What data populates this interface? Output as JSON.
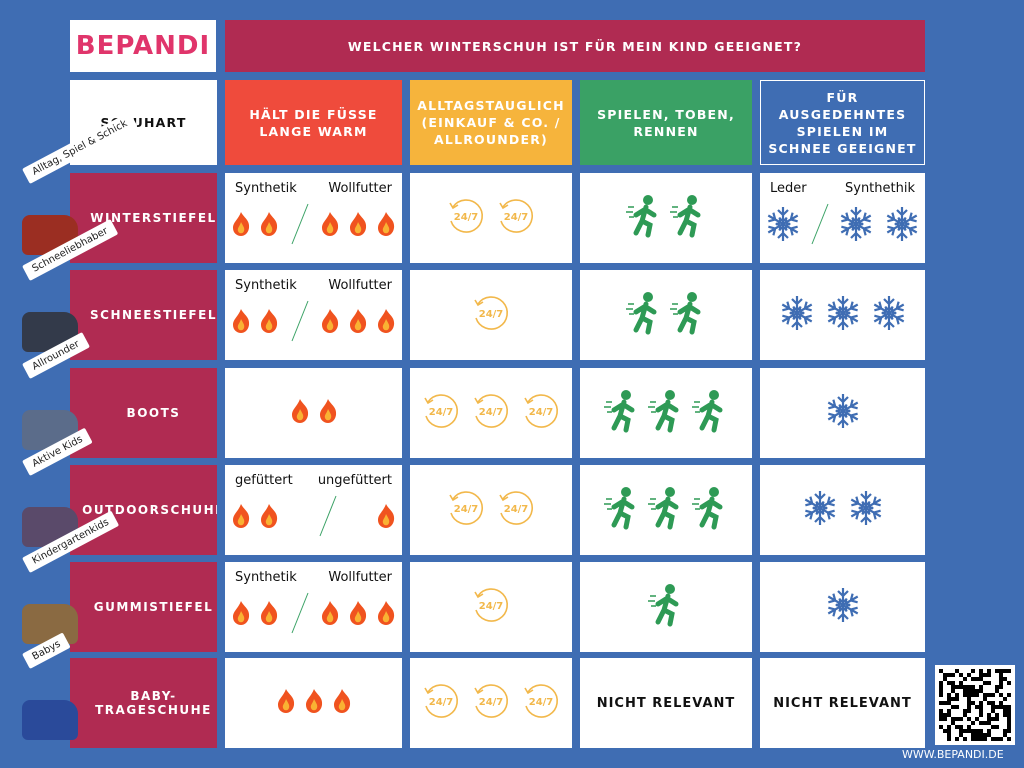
{
  "logo": "BEPANDI",
  "title": "WELCHER WINTERSCHUH IST FÜR MEIN KIND GEEIGNET?",
  "headers": [
    "SCHUHART",
    "HÄLT DIE FÜSSE LANGE WARM",
    "ALLTAGSTAUGLICH (EINKAUF & CO. / ALLROUNDER)",
    "SPIELEN, TOBEN, RENNEN",
    "FÜR AUSGEDEHNTES SPIELEN IM SCHNEE GEEIGNET"
  ],
  "icon_text": "24/7",
  "rows": [
    {
      "tag": "Alltag, Spiel & Schick",
      "name": "WINTERSTIEFEL",
      "warmth": {
        "left_label": "Synthetik",
        "left": 2,
        "right_label": "Wollfutter",
        "right": 3
      },
      "everyday": 2,
      "play": 2,
      "snow": {
        "left_label": "Leder",
        "left": 1,
        "right_label": "Synthethik",
        "right": 2
      }
    },
    {
      "tag": "Schneeliebhaber",
      "name": "SCHNEESTIEFEL",
      "warmth": {
        "left_label": "Synthetik",
        "left": 2,
        "right_label": "Wollfutter",
        "right": 3
      },
      "everyday": 1,
      "play": 2,
      "snow": 3
    },
    {
      "tag": "Allrounder",
      "name": "BOOTS",
      "warmth": 2,
      "everyday": 3,
      "play": 3,
      "snow": 1
    },
    {
      "tag": "Aktive Kids",
      "name": "OUTDOORSCHUHE",
      "warmth": {
        "left_label": "gefüttert",
        "left": 2,
        "right_label": "ungefüttert",
        "right": 1
      },
      "everyday": 2,
      "play": 3,
      "snow": 2
    },
    {
      "tag": "Kindergartenkids",
      "name": "GUMMISTIEFEL",
      "warmth": {
        "left_label": "Synthetik",
        "left": 2,
        "right_label": "Wollfutter",
        "right": 3
      },
      "everyday": 1,
      "play": 1,
      "snow": 1
    },
    {
      "tag": "Babys",
      "name": "BABY-TRAGESCHUHE",
      "warmth": 3,
      "everyday": 3,
      "play": "NICHT RELEVANT",
      "snow": "NICHT RELEVANT"
    }
  ],
  "website": "WWW.BEPANDI.DE"
}
